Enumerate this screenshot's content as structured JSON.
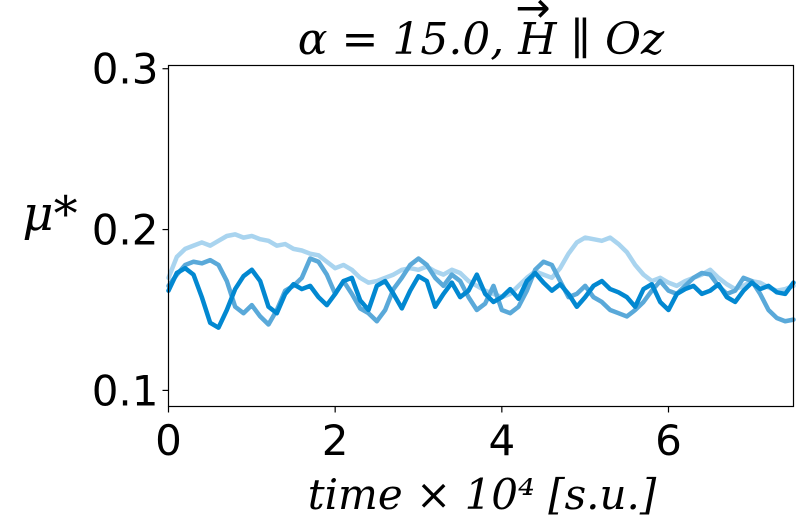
{
  "chart_data": {
    "type": "line",
    "title": "α = 15.0, H ∥ Oz",
    "title_vector_symbol": "→",
    "xlabel": "time × 10⁴ [s.u.]",
    "ylabel": "μ*",
    "xlim": [
      0,
      7.5
    ],
    "ylim": [
      0.09,
      0.302
    ],
    "xticks": [
      0,
      2,
      4,
      6
    ],
    "xtick_labels": [
      "0",
      "2",
      "4",
      "6"
    ],
    "yticks": [
      0.1,
      0.2,
      0.3
    ],
    "ytick_labels": [
      "0.1",
      "0.2",
      "0.3"
    ],
    "grid": false,
    "colors": [
      "#0288d1",
      "#5aa9d9",
      "#a9d4ef"
    ],
    "series": [
      {
        "color": "#0288d1",
        "x": [
          0,
          0.1,
          0.2,
          0.3,
          0.4,
          0.5,
          0.6,
          0.7,
          0.8,
          0.9,
          1.0,
          1.1,
          1.2,
          1.3,
          1.4,
          1.5,
          1.6,
          1.7,
          1.8,
          1.9,
          2.0,
          2.1,
          2.2,
          2.3,
          2.4,
          2.5,
          2.6,
          2.7,
          2.8,
          2.9,
          3.0,
          3.1,
          3.2,
          3.3,
          3.4,
          3.5,
          3.6,
          3.7,
          3.8,
          3.9,
          4.0,
          4.1,
          4.2,
          4.3,
          4.4,
          4.5,
          4.6,
          4.7,
          4.8,
          4.9,
          5.0,
          5.1,
          5.2,
          5.3,
          5.4,
          5.5,
          5.6,
          5.7,
          5.8,
          5.9,
          6.0,
          6.1,
          6.2,
          6.3,
          6.4,
          6.5,
          6.6,
          6.7,
          6.8,
          6.9,
          7.0,
          7.1,
          7.2,
          7.3,
          7.4,
          7.5
        ],
        "y": [
          0.162,
          0.173,
          0.176,
          0.172,
          0.158,
          0.142,
          0.139,
          0.15,
          0.163,
          0.171,
          0.175,
          0.168,
          0.152,
          0.148,
          0.16,
          0.166,
          0.163,
          0.165,
          0.158,
          0.153,
          0.16,
          0.168,
          0.17,
          0.156,
          0.15,
          0.165,
          0.168,
          0.16,
          0.151,
          0.162,
          0.171,
          0.168,
          0.152,
          0.16,
          0.167,
          0.158,
          0.162,
          0.172,
          0.16,
          0.155,
          0.158,
          0.163,
          0.157,
          0.168,
          0.173,
          0.167,
          0.162,
          0.166,
          0.16,
          0.152,
          0.158,
          0.165,
          0.168,
          0.163,
          0.161,
          0.158,
          0.152,
          0.163,
          0.166,
          0.155,
          0.15,
          0.16,
          0.163,
          0.165,
          0.16,
          0.162,
          0.166,
          0.158,
          0.155,
          0.162,
          0.167,
          0.163,
          0.165,
          0.161,
          0.16,
          0.167
        ]
      },
      {
        "color": "#5aa9d9",
        "x": [
          0,
          0.1,
          0.2,
          0.3,
          0.4,
          0.5,
          0.6,
          0.7,
          0.8,
          0.9,
          1.0,
          1.1,
          1.2,
          1.3,
          1.4,
          1.5,
          1.6,
          1.7,
          1.8,
          1.9,
          2.0,
          2.1,
          2.2,
          2.3,
          2.4,
          2.5,
          2.6,
          2.7,
          2.8,
          2.9,
          3.0,
          3.1,
          3.2,
          3.3,
          3.4,
          3.5,
          3.6,
          3.7,
          3.8,
          3.9,
          4.0,
          4.1,
          4.2,
          4.3,
          4.4,
          4.5,
          4.6,
          4.7,
          4.8,
          4.9,
          5.0,
          5.1,
          5.2,
          5.3,
          5.4,
          5.5,
          5.6,
          5.7,
          5.8,
          5.9,
          6.0,
          6.1,
          6.2,
          6.3,
          6.4,
          6.5,
          6.6,
          6.7,
          6.8,
          6.9,
          7.0,
          7.1,
          7.2,
          7.3,
          7.4,
          7.5
        ],
        "y": [
          0.165,
          0.172,
          0.178,
          0.18,
          0.179,
          0.181,
          0.178,
          0.168,
          0.152,
          0.148,
          0.153,
          0.146,
          0.141,
          0.15,
          0.162,
          0.165,
          0.17,
          0.182,
          0.18,
          0.172,
          0.16,
          0.168,
          0.16,
          0.151,
          0.148,
          0.143,
          0.15,
          0.163,
          0.17,
          0.178,
          0.182,
          0.178,
          0.17,
          0.165,
          0.172,
          0.168,
          0.158,
          0.15,
          0.154,
          0.165,
          0.15,
          0.148,
          0.152,
          0.162,
          0.175,
          0.18,
          0.178,
          0.168,
          0.158,
          0.16,
          0.165,
          0.158,
          0.155,
          0.15,
          0.148,
          0.146,
          0.15,
          0.155,
          0.162,
          0.168,
          0.162,
          0.16,
          0.165,
          0.17,
          0.173,
          0.172,
          0.165,
          0.16,
          0.162,
          0.17,
          0.168,
          0.16,
          0.15,
          0.145,
          0.143,
          0.144
        ]
      },
      {
        "color": "#a9d4ef",
        "x": [
          0,
          0.1,
          0.2,
          0.3,
          0.4,
          0.5,
          0.6,
          0.7,
          0.8,
          0.9,
          1.0,
          1.1,
          1.2,
          1.3,
          1.4,
          1.5,
          1.6,
          1.7,
          1.8,
          1.9,
          2.0,
          2.1,
          2.2,
          2.3,
          2.4,
          2.5,
          2.6,
          2.7,
          2.8,
          2.9,
          3.0,
          3.1,
          3.2,
          3.3,
          3.4,
          3.5,
          3.6,
          3.7,
          3.8,
          3.9,
          4.0,
          4.1,
          4.2,
          4.3,
          4.4,
          4.5,
          4.6,
          4.7,
          4.8,
          4.9,
          5.0,
          5.1,
          5.2,
          5.3,
          5.4,
          5.5,
          5.6,
          5.7,
          5.8,
          5.9,
          6.0,
          6.1,
          6.2,
          6.3,
          6.4,
          6.5,
          6.6,
          6.7,
          6.8,
          6.9,
          7.0,
          7.1,
          7.2,
          7.3,
          7.4,
          7.5
        ],
        "y": [
          0.17,
          0.183,
          0.188,
          0.19,
          0.192,
          0.19,
          0.193,
          0.196,
          0.197,
          0.195,
          0.196,
          0.194,
          0.193,
          0.19,
          0.191,
          0.188,
          0.187,
          0.185,
          0.184,
          0.18,
          0.176,
          0.178,
          0.175,
          0.17,
          0.167,
          0.168,
          0.17,
          0.172,
          0.175,
          0.176,
          0.175,
          0.177,
          0.174,
          0.172,
          0.175,
          0.173,
          0.168,
          0.165,
          0.162,
          0.16,
          0.158,
          0.16,
          0.165,
          0.17,
          0.174,
          0.172,
          0.17,
          0.176,
          0.185,
          0.192,
          0.195,
          0.194,
          0.193,
          0.195,
          0.191,
          0.186,
          0.178,
          0.172,
          0.168,
          0.17,
          0.167,
          0.165,
          0.168,
          0.17,
          0.172,
          0.175,
          0.17,
          0.166,
          0.163,
          0.165,
          0.168,
          0.167,
          0.164,
          0.162,
          0.163,
          0.165
        ]
      }
    ]
  }
}
